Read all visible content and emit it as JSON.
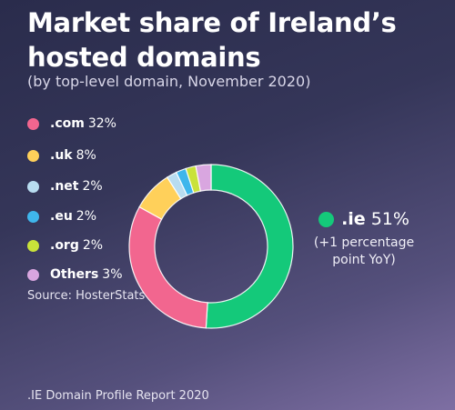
{
  "header": {
    "title": "Market share of Ireland’s hosted domains",
    "subtitle": "(by top-level domain, November 2020)"
  },
  "legend": [
    {
      "label": ".com",
      "value": "32%",
      "color": "#f2668f"
    },
    {
      "label": ".uk",
      "value": "8%",
      "color": "#ffd05a"
    },
    {
      "label": ".net",
      "value": "2%",
      "color": "#b8dcf0"
    },
    {
      "label": ".eu",
      "value": "2%",
      "color": "#3fb6ec"
    },
    {
      "label": ".org",
      "value": "2%",
      "color": "#c9e23a"
    },
    {
      "label": "Others",
      "value": "3%",
      "color": "#d9a6e0"
    }
  ],
  "callout": {
    "label": ".ie",
    "value": "51%",
    "note": "(+1 percentage point YoY)",
    "color": "#14c97a"
  },
  "source": "Source: HosterStats",
  "footer": ".IE Domain Profile Report 2020",
  "chart_data": {
    "type": "pie",
    "donut": true,
    "title": "Market share of Ireland’s hosted domains",
    "subtitle": "(by top-level domain, November 2020)",
    "categories": [
      ".ie",
      ".com",
      ".uk",
      ".net",
      ".eu",
      ".org",
      "Others"
    ],
    "values": [
      51,
      32,
      8,
      2,
      2,
      2,
      3
    ],
    "colors": [
      "#14c97a",
      "#f2668f",
      "#ffd05a",
      "#b8dcf0",
      "#3fb6ec",
      "#c9e23a",
      "#d9a6e0"
    ],
    "unit": "%",
    "legend_position": "left"
  }
}
